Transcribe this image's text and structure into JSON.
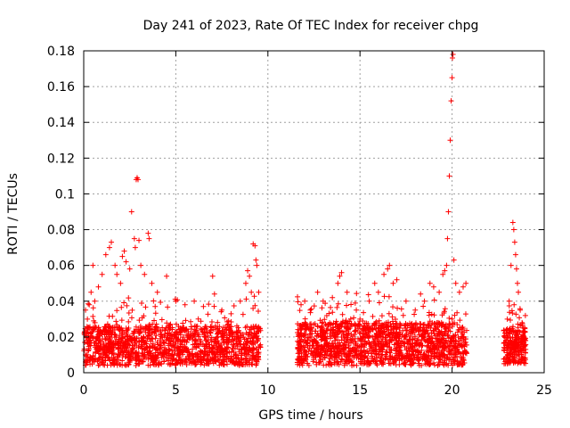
{
  "chart_data": {
    "type": "scatter",
    "title": "Day 241 of 2023, Rate Of TEC Index for receiver chpg",
    "xlabel": "GPS time / hours",
    "ylabel": "ROTI / TECUs",
    "xlim": [
      0,
      25
    ],
    "ylim": [
      0,
      0.18
    ],
    "xticks": [
      0,
      5,
      10,
      15,
      20,
      25
    ],
    "yticks": [
      0,
      0.02,
      0.04,
      0.06,
      0.08,
      0.1,
      0.12,
      0.14,
      0.16,
      0.18
    ],
    "xtick_labels": [
      "0",
      "5",
      "10",
      "15",
      "20",
      "25"
    ],
    "ytick_labels": [
      "0",
      "0.02",
      "0.04",
      "0.06",
      "0.08",
      "0.1",
      "0.12",
      "0.14",
      "0.16",
      "0.18"
    ],
    "grid": true,
    "marker": "+",
    "color": "#ff0000",
    "series": [
      {
        "points": [
          [
            0.1,
            0.035
          ],
          [
            0.2,
            0.03
          ],
          [
            0.3,
            0.038
          ],
          [
            0.4,
            0.045
          ],
          [
            0.5,
            0.06
          ],
          [
            0.6,
            0.04
          ],
          [
            0.8,
            0.048
          ],
          [
            1.0,
            0.055
          ],
          [
            1.2,
            0.066
          ],
          [
            1.4,
            0.07
          ],
          [
            1.5,
            0.073
          ],
          [
            1.7,
            0.06
          ],
          [
            1.8,
            0.055
          ],
          [
            2.0,
            0.05
          ],
          [
            2.1,
            0.065
          ],
          [
            2.2,
            0.068
          ],
          [
            2.3,
            0.062
          ],
          [
            2.5,
            0.058
          ],
          [
            2.6,
            0.09
          ],
          [
            2.75,
            0.075
          ],
          [
            2.8,
            0.07
          ],
          [
            2.85,
            0.108
          ],
          [
            2.9,
            0.109
          ],
          [
            2.95,
            0.108
          ],
          [
            3.0,
            0.074
          ],
          [
            3.1,
            0.06
          ],
          [
            3.3,
            0.055
          ],
          [
            3.5,
            0.078
          ],
          [
            3.55,
            0.075
          ],
          [
            3.7,
            0.05
          ],
          [
            4.0,
            0.045
          ],
          [
            4.5,
            0.054
          ],
          [
            5.0,
            0.04
          ],
          [
            5.5,
            0.038
          ],
          [
            6.0,
            0.04
          ],
          [
            6.5,
            0.037
          ],
          [
            7.0,
            0.054
          ],
          [
            7.1,
            0.044
          ],
          [
            7.5,
            0.035
          ],
          [
            8.0,
            0.033
          ],
          [
            8.5,
            0.04
          ],
          [
            8.8,
            0.05
          ],
          [
            8.9,
            0.057
          ],
          [
            9.0,
            0.054
          ],
          [
            9.1,
            0.045
          ],
          [
            9.2,
            0.072
          ],
          [
            9.3,
            0.071
          ],
          [
            9.35,
            0.063
          ],
          [
            9.4,
            0.06
          ],
          [
            9.5,
            0.045
          ],
          [
            11.8,
            0.038
          ],
          [
            12.0,
            0.04
          ],
          [
            12.3,
            0.035
          ],
          [
            12.7,
            0.045
          ],
          [
            13.0,
            0.04
          ],
          [
            13.5,
            0.042
          ],
          [
            13.8,
            0.05
          ],
          [
            13.9,
            0.054
          ],
          [
            14.0,
            0.056
          ],
          [
            14.3,
            0.045
          ],
          [
            14.8,
            0.035
          ],
          [
            15.0,
            0.03
          ],
          [
            15.5,
            0.04
          ],
          [
            15.8,
            0.05
          ],
          [
            16.0,
            0.045
          ],
          [
            16.3,
            0.055
          ],
          [
            16.5,
            0.058
          ],
          [
            16.6,
            0.06
          ],
          [
            16.8,
            0.05
          ],
          [
            17.0,
            0.052
          ],
          [
            17.5,
            0.04
          ],
          [
            18.0,
            0.035
          ],
          [
            18.5,
            0.04
          ],
          [
            18.8,
            0.05
          ],
          [
            19.0,
            0.048
          ],
          [
            19.3,
            0.045
          ],
          [
            19.5,
            0.055
          ],
          [
            19.6,
            0.057
          ],
          [
            19.7,
            0.06
          ],
          [
            19.75,
            0.075
          ],
          [
            19.8,
            0.09
          ],
          [
            19.85,
            0.11
          ],
          [
            19.9,
            0.13
          ],
          [
            19.95,
            0.152
          ],
          [
            20.0,
            0.165
          ],
          [
            20.02,
            0.176
          ],
          [
            20.05,
            0.178
          ],
          [
            20.1,
            0.063
          ],
          [
            20.2,
            0.05
          ],
          [
            20.4,
            0.045
          ],
          [
            20.6,
            0.048
          ],
          [
            20.75,
            0.05
          ],
          [
            23.0,
            0.03
          ],
          [
            23.1,
            0.04
          ],
          [
            23.2,
            0.06
          ],
          [
            23.3,
            0.084
          ],
          [
            23.35,
            0.08
          ],
          [
            23.4,
            0.073
          ],
          [
            23.45,
            0.066
          ],
          [
            23.5,
            0.058
          ],
          [
            23.55,
            0.05
          ],
          [
            23.6,
            0.045
          ],
          [
            23.7,
            0.035
          ],
          [
            23.8,
            0.028
          ]
        ]
      }
    ],
    "dense_bands": [
      {
        "x_start": 0.0,
        "x_end": 9.6,
        "y_base_min": 0.004,
        "y_base_max": 0.026,
        "density": 1400
      },
      {
        "x_start": 11.6,
        "x_end": 20.8,
        "y_base_min": 0.004,
        "y_base_max": 0.028,
        "density": 1500
      },
      {
        "x_start": 22.8,
        "x_end": 24.0,
        "y_base_min": 0.005,
        "y_base_max": 0.024,
        "density": 260
      }
    ]
  }
}
